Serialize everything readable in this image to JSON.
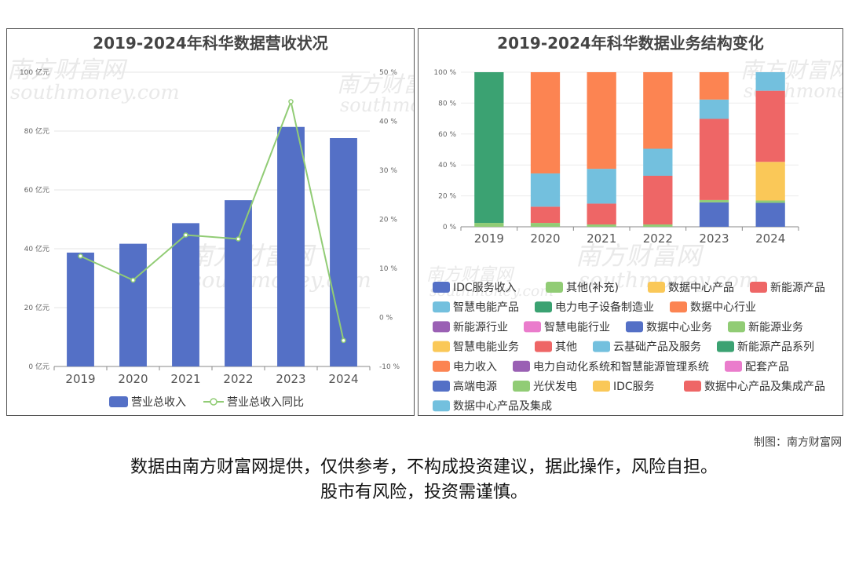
{
  "credit": "制图：南方财富网",
  "disclaimer": {
    "line1": "数据由南方财富网提供，仅供参考，不构成投资建议，据此操作，风险自担。",
    "line2": "股市有风险，投资需谨慎。"
  },
  "watermark": {
    "cn": "南方财富网",
    "en": "southmoney.com"
  },
  "colors": {
    "revenue_bar": "#5470c6",
    "yoy_line": "#91cc75"
  },
  "chart_data": [
    {
      "type": "bar",
      "title": "2019-2024年科华数据营收状况",
      "categories": [
        "2019",
        "2020",
        "2021",
        "2022",
        "2023",
        "2024"
      ],
      "y_left": {
        "min": 0,
        "max": 100,
        "ticks": [
          "0 亿元",
          "20 亿元",
          "40 亿元",
          "60 亿元",
          "80 亿元",
          "100 亿元"
        ]
      },
      "y_right": {
        "min": -10,
        "max": 50,
        "ticks": [
          "-10 %",
          "0 %",
          "10 %",
          "20 %",
          "30 %",
          "40 %",
          "50 %"
        ]
      },
      "series": [
        {
          "name": "营业总收入",
          "type": "bar",
          "axis": "left",
          "values": [
            38.7,
            41.7,
            48.7,
            56.5,
            81.4,
            77.6
          ]
        },
        {
          "name": "营业总收入同比",
          "type": "line",
          "axis": "right",
          "values": [
            12.5,
            7.6,
            16.8,
            16.0,
            44.0,
            -4.7
          ]
        }
      ],
      "legend": "bottom"
    },
    {
      "type": "bar",
      "stacked": true,
      "title": "2019-2024年科华数据业务结构变化",
      "categories": [
        "2019",
        "2020",
        "2021",
        "2022",
        "2023",
        "2024"
      ],
      "y": {
        "min": 0,
        "max": 100,
        "ticks": [
          "0 %",
          "20 %",
          "40 %",
          "60 %",
          "80 %",
          "100 %"
        ]
      },
      "series": [
        {
          "name": "IDC服务收入",
          "color": "#5470c6",
          "values": [
            0,
            0,
            0,
            0,
            15.8,
            15.5
          ]
        },
        {
          "name": "其他(补充)",
          "color": "#91cc75",
          "values": [
            2.5,
            2.5,
            1.5,
            1.5,
            1.5,
            1.5
          ]
        },
        {
          "name": "数据中心产品",
          "color": "#fac858",
          "values": [
            0,
            0,
            0,
            0,
            0,
            25.0
          ]
        },
        {
          "name": "新能源产品",
          "color": "#ee6666",
          "values": [
            0,
            0,
            0,
            0,
            52.5,
            46.0
          ]
        },
        {
          "name": "智慧电能产品",
          "color": "#73c0de",
          "values": [
            0,
            0,
            0,
            0,
            12.5,
            12.0
          ]
        },
        {
          "name": "电力电子设备制造业",
          "color": "#3ba272",
          "values": [
            97.5,
            0,
            0,
            0,
            0,
            0
          ]
        },
        {
          "name": "数据中心行业",
          "color": "#fc8452",
          "values": [
            0,
            0,
            0,
            0,
            17.7,
            0
          ]
        },
        {
          "name": "新能源行业",
          "color": "#9a60b4",
          "values": [
            0,
            0,
            0,
            0,
            0,
            0
          ]
        },
        {
          "name": "智慧电能行业",
          "color": "#ea7ccc",
          "values": [
            0,
            0,
            0,
            0,
            0,
            0
          ]
        },
        {
          "name": "数据中心业务",
          "color": "#5470c6",
          "values": [
            0,
            0,
            0,
            0,
            0,
            0
          ]
        },
        {
          "name": "新能源业务",
          "color": "#91cc75",
          "values": [
            0,
            0,
            0,
            0,
            0,
            0
          ]
        },
        {
          "name": "智慧电能业务",
          "color": "#fac858",
          "values": [
            0,
            0,
            0,
            0,
            0,
            0
          ]
        },
        {
          "name": "其他",
          "color": "#ee6666",
          "values": [
            0,
            10.5,
            13.5,
            31.5,
            0,
            0
          ]
        },
        {
          "name": "云基础产品及服务",
          "color": "#73c0de",
          "values": [
            0,
            21.5,
            22.5,
            17.5,
            0,
            0
          ]
        },
        {
          "name": "新能源产品系列",
          "color": "#3ba272",
          "values": [
            0,
            0,
            0,
            0,
            0,
            0
          ]
        },
        {
          "name": "电力收入",
          "color": "#fc8452",
          "values": [
            0,
            65.5,
            62.5,
            49.5,
            0,
            0
          ]
        },
        {
          "name": "电力自动化系统和智慧能源管理系统",
          "color": "#9a60b4",
          "values": [
            0,
            0,
            0,
            0,
            0,
            0
          ]
        },
        {
          "name": "配套产品",
          "color": "#ea7ccc",
          "values": [
            0,
            0,
            0,
            0,
            0,
            0
          ]
        },
        {
          "name": "高端电源",
          "color": "#5470c6",
          "values": [
            0,
            0,
            0,
            0,
            0,
            0
          ]
        },
        {
          "name": "光伏发电",
          "color": "#91cc75",
          "values": [
            0,
            0,
            0,
            0,
            0,
            0
          ]
        },
        {
          "name": "IDC服务",
          "color": "#fac858",
          "values": [
            0,
            0,
            0,
            0,
            0,
            0
          ]
        },
        {
          "name": "数据中心产品及集成产品",
          "color": "#ee6666",
          "values": [
            0,
            0,
            0,
            0,
            0,
            0
          ]
        },
        {
          "name": "数据中心产品及集成",
          "color": "#73c0de",
          "values": [
            0,
            0,
            0,
            0,
            0,
            0
          ]
        }
      ],
      "legend": "bottom"
    }
  ]
}
